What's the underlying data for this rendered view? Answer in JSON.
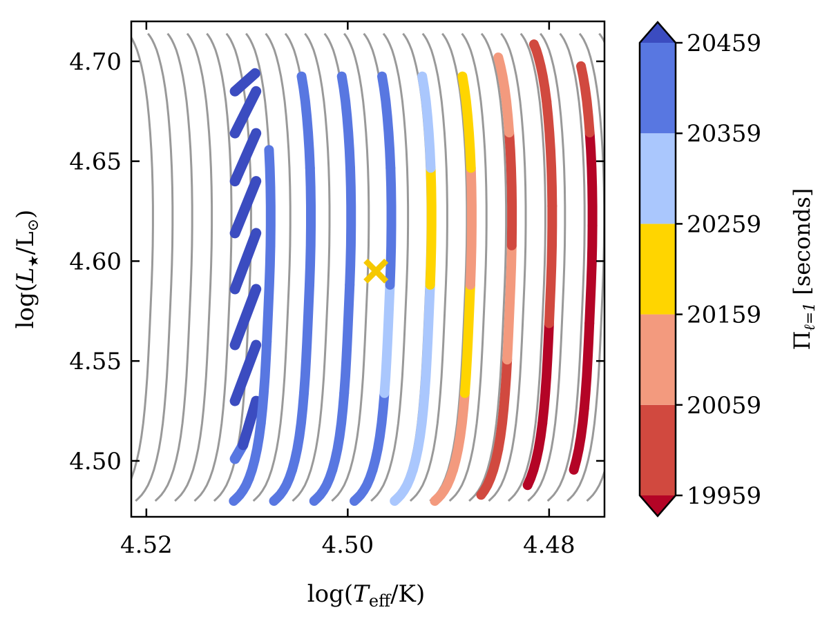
{
  "chart_data": {
    "type": "scatter",
    "description_free": true,
    "xlabel_parts": [
      "log(",
      "T",
      "eff",
      "/K)"
    ],
    "ylabel_parts": [
      "log(",
      "L",
      "★",
      "/L",
      "⊙",
      ")"
    ],
    "xlim": [
      4.5215,
      4.4745
    ],
    "ylim": [
      4.472,
      4.72
    ],
    "x_ticks": [
      4.52,
      4.5,
      4.48
    ],
    "x_tick_labels": [
      "4.52",
      "4.50",
      "4.48"
    ],
    "y_ticks": [
      4.5,
      4.55,
      4.6,
      4.65,
      4.7
    ],
    "y_tick_labels": [
      "4.50",
      "4.55",
      "4.60",
      "4.65",
      "4.70"
    ],
    "colorbar": {
      "label_parts": [
        "Π",
        "ℓ=1",
        " [seconds]"
      ],
      "ticks": [
        19959,
        20059,
        20159,
        20259,
        20359,
        20459
      ],
      "tick_labels": [
        "19959",
        "20059",
        "20159",
        "20259",
        "20359",
        "20459"
      ],
      "bins": [
        {
          "from": 19959,
          "to": 20059,
          "color": "#d1493f"
        },
        {
          "from": 20059,
          "to": 20159,
          "color": "#f39a7e"
        },
        {
          "from": 20159,
          "to": 20259,
          "color": "#ffd500"
        },
        {
          "from": 20259,
          "to": 20359,
          "color": "#aac7fd"
        },
        {
          "from": 20359,
          "to": 20459,
          "color": "#5877e1"
        }
      ],
      "under_color": "#b40426",
      "over_color": "#3b4cc0"
    },
    "isochrone_color": "#999999",
    "marker": {
      "x": 4.4972,
      "y": 4.595,
      "symbol": "X",
      "color": "#f5c800"
    },
    "tracks": [
      {
        "name": "track-1",
        "segments": [
          {
            "x0": 4.5112,
            "y0": 4.501,
            "x1": 4.5104,
            "y1": 4.508,
            "color": "#5877e1"
          },
          {
            "x0": 4.5104,
            "y0": 4.508,
            "x1": 4.5091,
            "y1": 4.53,
            "color": "#3b4cc0"
          }
        ]
      },
      {
        "name": "track-2",
        "segments": [
          {
            "x0": 4.5112,
            "y0": 4.53,
            "x1": 4.5091,
            "y1": 4.558,
            "color": "#3b4cc0"
          }
        ]
      },
      {
        "name": "track-3",
        "segments": [
          {
            "x0": 4.5112,
            "y0": 4.558,
            "x1": 4.5091,
            "y1": 4.586,
            "color": "#3b4cc0"
          }
        ]
      },
      {
        "name": "track-4",
        "segments": [
          {
            "x0": 4.5112,
            "y0": 4.586,
            "x1": 4.5091,
            "y1": 4.614,
            "color": "#3b4cc0"
          }
        ]
      },
      {
        "name": "track-5",
        "segments": [
          {
            "x0": 4.5112,
            "y0": 4.614,
            "x1": 4.5091,
            "y1": 4.64,
            "color": "#3b4cc0"
          }
        ]
      },
      {
        "name": "track-6",
        "segments": [
          {
            "x0": 4.5112,
            "y0": 4.64,
            "x1": 4.5091,
            "y1": 4.664,
            "color": "#3b4cc0"
          }
        ]
      },
      {
        "name": "track-7",
        "segments": [
          {
            "x0": 4.5112,
            "y0": 4.664,
            "x1": 4.5091,
            "y1": 4.685,
            "color": "#3b4cc0"
          }
        ]
      },
      {
        "name": "track-8",
        "segments": [
          {
            "x0": 4.5112,
            "y0": 4.685,
            "x1": 4.5092,
            "y1": 4.694,
            "color": "#3b4cc0"
          }
        ]
      }
    ]
  }
}
